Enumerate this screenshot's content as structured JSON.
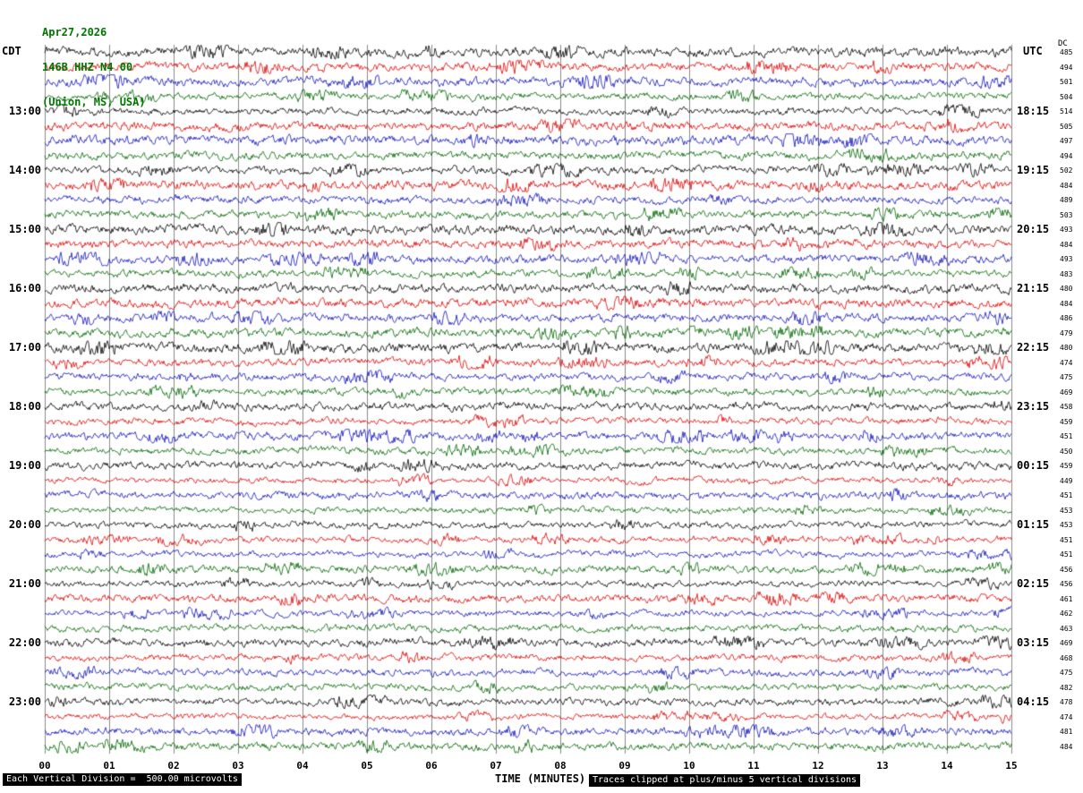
{
  "header": {
    "date": "Apr27,2026",
    "station": "146B HHZ N4 00",
    "location": "(Union, MS, USA)",
    "left_tz_label": "CDT",
    "right_tz_label": "UTC",
    "dc_column_label": "DC"
  },
  "x_axis": {
    "label": "TIME (MINUTES)",
    "ticks": [
      "00",
      "01",
      "02",
      "03",
      "04",
      "05",
      "06",
      "07",
      "08",
      "09",
      "10",
      "11",
      "12",
      "13",
      "14",
      "15"
    ]
  },
  "footer": {
    "scale_note": "Each Vertical Division =  500.00 microvolts",
    "clip_note": "Traces clipped at plus/minus 5 vertical divisions"
  },
  "chart_data": {
    "type": "line",
    "subtype": "seismogram-helicorder",
    "title": "146B HHZ N4 00 (Union, MS, USA) Apr27,2026",
    "station": "146B HHZ N4 00",
    "location": "Union, MS, USA",
    "date": "Apr27,2026",
    "rows": 48,
    "minutes_per_row": 15,
    "x_range_minutes": [
      0,
      15
    ],
    "grid": true,
    "microvolts_per_division": 500.0,
    "clip_divisions": 5,
    "trace_color_cycle": [
      "#000000",
      "#dd0000",
      "#1111bb",
      "#006600"
    ],
    "left_time_labels": [
      {
        "row": 4,
        "label": "13:00"
      },
      {
        "row": 8,
        "label": "14:00"
      },
      {
        "row": 12,
        "label": "15:00"
      },
      {
        "row": 16,
        "label": "16:00"
      },
      {
        "row": 20,
        "label": "17:00"
      },
      {
        "row": 24,
        "label": "18:00"
      },
      {
        "row": 28,
        "label": "19:00"
      },
      {
        "row": 32,
        "label": "20:00"
      },
      {
        "row": 36,
        "label": "21:00"
      },
      {
        "row": 40,
        "label": "22:00"
      },
      {
        "row": 44,
        "label": "23:00"
      }
    ],
    "right_time_labels": [
      {
        "row": 4,
        "label": "18:15"
      },
      {
        "row": 8,
        "label": "19:15"
      },
      {
        "row": 12,
        "label": "20:15"
      },
      {
        "row": 16,
        "label": "21:15"
      },
      {
        "row": 20,
        "label": "22:15"
      },
      {
        "row": 24,
        "label": "23:15"
      },
      {
        "row": 28,
        "label": "00:15"
      },
      {
        "row": 32,
        "label": "01:15"
      },
      {
        "row": 36,
        "label": "02:15"
      },
      {
        "row": 40,
        "label": "03:15"
      },
      {
        "row": 44,
        "label": "04:15"
      }
    ],
    "dc_values": [
      485,
      494,
      501,
      504,
      514,
      505,
      497,
      494,
      502,
      484,
      489,
      503,
      493,
      484,
      493,
      483,
      480,
      484,
      486,
      479,
      480,
      474,
      475,
      469,
      458,
      459,
      451,
      450,
      459,
      449,
      451,
      453,
      453,
      451,
      451,
      456,
      456,
      461,
      462,
      463,
      469,
      468,
      475,
      482,
      478,
      474,
      481,
      484
    ]
  }
}
